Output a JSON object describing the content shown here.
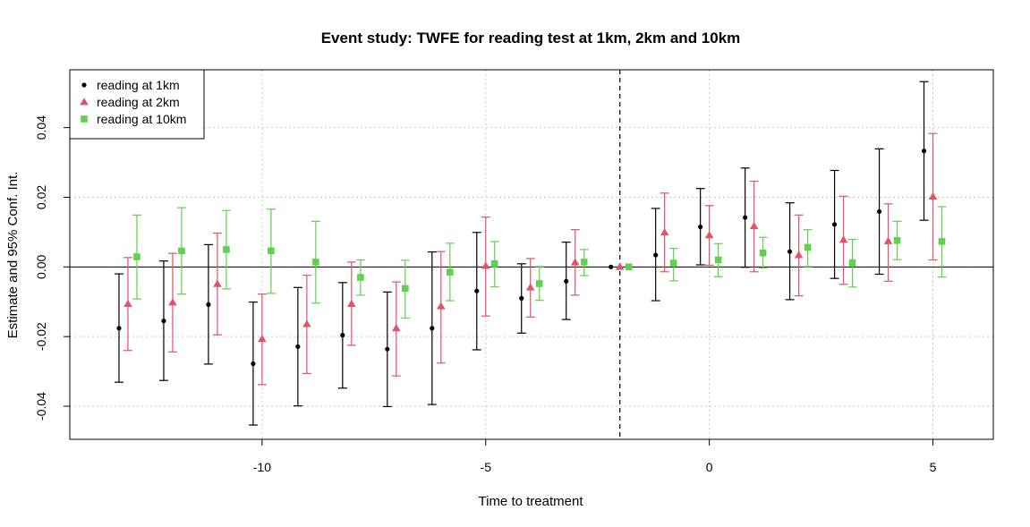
{
  "chart_data": {
    "type": "scatter",
    "title": "Event study: TWFE for reading test at 1km, 2km and 10km",
    "xlabel": "Time to treatment",
    "ylabel": "Estimate and 95% Conf. Int.",
    "xlim": [
      -14.3,
      6.35
    ],
    "ylim": [
      -0.0495,
      0.0566
    ],
    "x_ticks": [
      {
        "value": -10,
        "label": "-10"
      },
      {
        "value": -5,
        "label": "-5"
      },
      {
        "value": 0,
        "label": "0"
      },
      {
        "value": 5,
        "label": "5"
      }
    ],
    "y_ticks": [
      {
        "value": -0.04,
        "label": "-0.04"
      },
      {
        "value": -0.02,
        "label": "-0.02"
      },
      {
        "value": 0.0,
        "label": "0.00"
      },
      {
        "value": 0.02,
        "label": "0.02"
      },
      {
        "value": 0.04,
        "label": "0.04"
      }
    ],
    "grid": true,
    "reference_hline": 0,
    "reference_vline": -2,
    "legend_position": "top-left",
    "series": [
      {
        "name": "reading at 1km",
        "color": "#000000",
        "marker": "circle",
        "offset": -0.2,
        "x": [
          -13,
          -12,
          -11,
          -10,
          -9,
          -8,
          -7,
          -6,
          -5,
          -4,
          -3,
          -2,
          -1,
          0,
          1,
          2,
          3,
          4,
          5
        ],
        "y": [
          -0.0176,
          -0.0155,
          -0.0108,
          -0.0278,
          -0.0229,
          -0.0196,
          -0.0236,
          -0.0176,
          -0.0069,
          -0.009,
          -0.0041,
          0.0,
          0.0034,
          0.0115,
          0.0142,
          0.0044,
          0.0122,
          0.0159,
          0.0333
        ],
        "ci_low": [
          -0.0331,
          -0.0326,
          -0.0279,
          -0.0454,
          -0.0399,
          -0.0348,
          -0.0401,
          -0.0395,
          -0.0238,
          -0.019,
          -0.0151,
          null,
          -0.0097,
          0.0006,
          -0.0001,
          -0.0094,
          -0.0033,
          -0.0021,
          0.0134
        ],
        "ci_high": [
          -0.002,
          0.0017,
          0.0064,
          -0.0101,
          -0.0059,
          -0.0045,
          -0.0072,
          0.0043,
          0.0099,
          0.0009,
          0.0071,
          null,
          0.0168,
          0.0225,
          0.0284,
          0.0184,
          0.0277,
          0.0339,
          0.0532
        ]
      },
      {
        "name": "reading at 2km",
        "color": "#DF536B",
        "marker": "triangle",
        "offset": 0.0,
        "x": [
          -13,
          -12,
          -11,
          -10,
          -9,
          -8,
          -7,
          -6,
          -5,
          -4,
          -3,
          -2,
          -1,
          0,
          1,
          2,
          3,
          4,
          5
        ],
        "y": [
          -0.0106,
          -0.0102,
          -0.0049,
          -0.0207,
          -0.0164,
          -0.0106,
          -0.0176,
          -0.0113,
          0.0003,
          -0.0059,
          0.0013,
          0.0,
          0.0099,
          0.0091,
          0.0117,
          0.0034,
          0.0078,
          0.0074,
          0.0202
        ],
        "ci_low": [
          -0.024,
          -0.0244,
          -0.0195,
          -0.0338,
          -0.0306,
          -0.0225,
          -0.0313,
          -0.0276,
          -0.0141,
          -0.0144,
          -0.0081,
          null,
          -0.0014,
          0.0005,
          -0.0014,
          -0.0083,
          -0.005,
          -0.0041,
          0.002
        ],
        "ci_high": [
          0.0027,
          0.0039,
          0.0097,
          -0.0078,
          -0.0024,
          0.0014,
          -0.0043,
          0.0044,
          0.0143,
          0.0024,
          0.0107,
          null,
          0.0212,
          0.0176,
          0.0246,
          0.0149,
          0.0203,
          0.0181,
          0.0383
        ]
      },
      {
        "name": "reading at 10km",
        "color": "#61D04F",
        "marker": "square",
        "offset": 0.2,
        "x": [
          -13,
          -12,
          -11,
          -10,
          -9,
          -8,
          -7,
          -6,
          -5,
          -4,
          -3,
          -2,
          -1,
          0,
          1,
          2,
          3,
          4,
          5
        ],
        "y": [
          0.0029,
          0.0046,
          0.005,
          0.0046,
          0.0014,
          -0.003,
          -0.0062,
          -0.0015,
          0.0009,
          -0.0048,
          0.0014,
          0.0,
          0.0011,
          0.002,
          0.004,
          0.0056,
          0.0012,
          0.0076,
          0.0073
        ],
        "ci_low": [
          -0.0092,
          -0.0078,
          -0.0063,
          -0.0076,
          -0.0104,
          -0.0081,
          -0.0147,
          -0.0097,
          -0.0057,
          -0.0096,
          -0.0025,
          null,
          -0.004,
          -0.0028,
          -0.0003,
          0.0001,
          -0.0058,
          0.0021,
          -0.0029
        ],
        "ci_high": [
          0.0149,
          0.017,
          0.0162,
          0.0166,
          0.0131,
          0.002,
          0.0019,
          0.0068,
          0.0073,
          0.0001,
          0.005,
          null,
          0.0053,
          0.0067,
          0.0085,
          0.0107,
          0.0079,
          0.0131,
          0.0173
        ]
      }
    ]
  }
}
